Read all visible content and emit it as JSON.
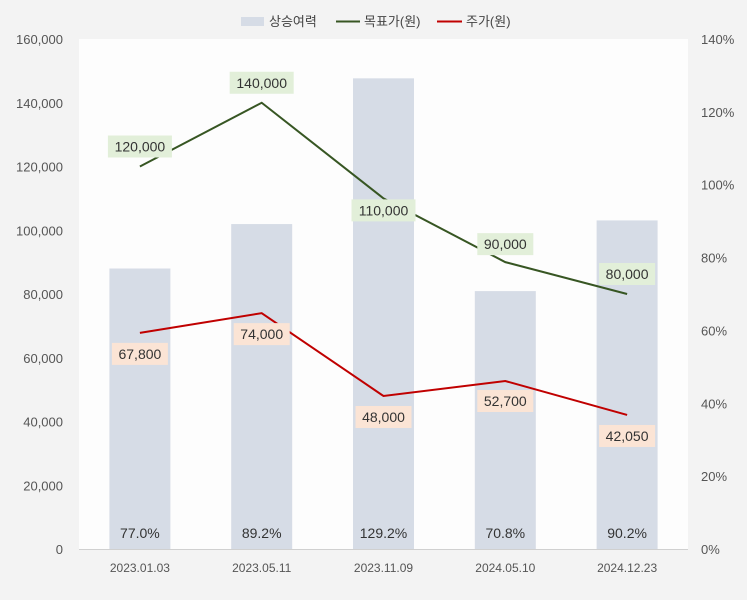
{
  "chart_data": {
    "type": "bar",
    "categories": [
      "2023.01.03",
      "2023.05.11",
      "2023.11.09",
      "2024.05.10",
      "2024.12.23"
    ],
    "series": [
      {
        "name": "상승여력",
        "type": "bar",
        "axis": "right",
        "values": [
          77.0,
          89.2,
          129.2,
          70.8,
          90.2
        ],
        "labels": [
          "77.0%",
          "89.2%",
          "129.2%",
          "70.8%",
          "90.2%"
        ],
        "color": "#d6dce6"
      },
      {
        "name": "목표가(원)",
        "type": "line",
        "axis": "left",
        "values": [
          120000,
          140000,
          110000,
          90000,
          80000
        ],
        "labels": [
          "120,000",
          "140,000",
          "110,000",
          "90,000",
          "80,000"
        ],
        "color": "#375623",
        "label_bg": "#e2efd9"
      },
      {
        "name": "주가(원)",
        "type": "line",
        "axis": "left",
        "values": [
          67800,
          74000,
          48000,
          52700,
          42050
        ],
        "labels": [
          "67,800",
          "74,000",
          "48,000",
          "52,700",
          "42,050"
        ],
        "color": "#c00000",
        "label_bg": "#fbe4d5"
      }
    ],
    "y_left": {
      "min": 0,
      "max": 160000,
      "ticks": [
        "0",
        "20,000",
        "40,000",
        "60,000",
        "80,000",
        "100,000",
        "120,000",
        "140,000",
        "160,000"
      ]
    },
    "y_right": {
      "min": 0,
      "max": 140,
      "ticks": [
        "0%",
        "20%",
        "40%",
        "60%",
        "80%",
        "100%",
        "120%",
        "140%"
      ]
    },
    "legend_position": "top-center",
    "grid": false
  }
}
